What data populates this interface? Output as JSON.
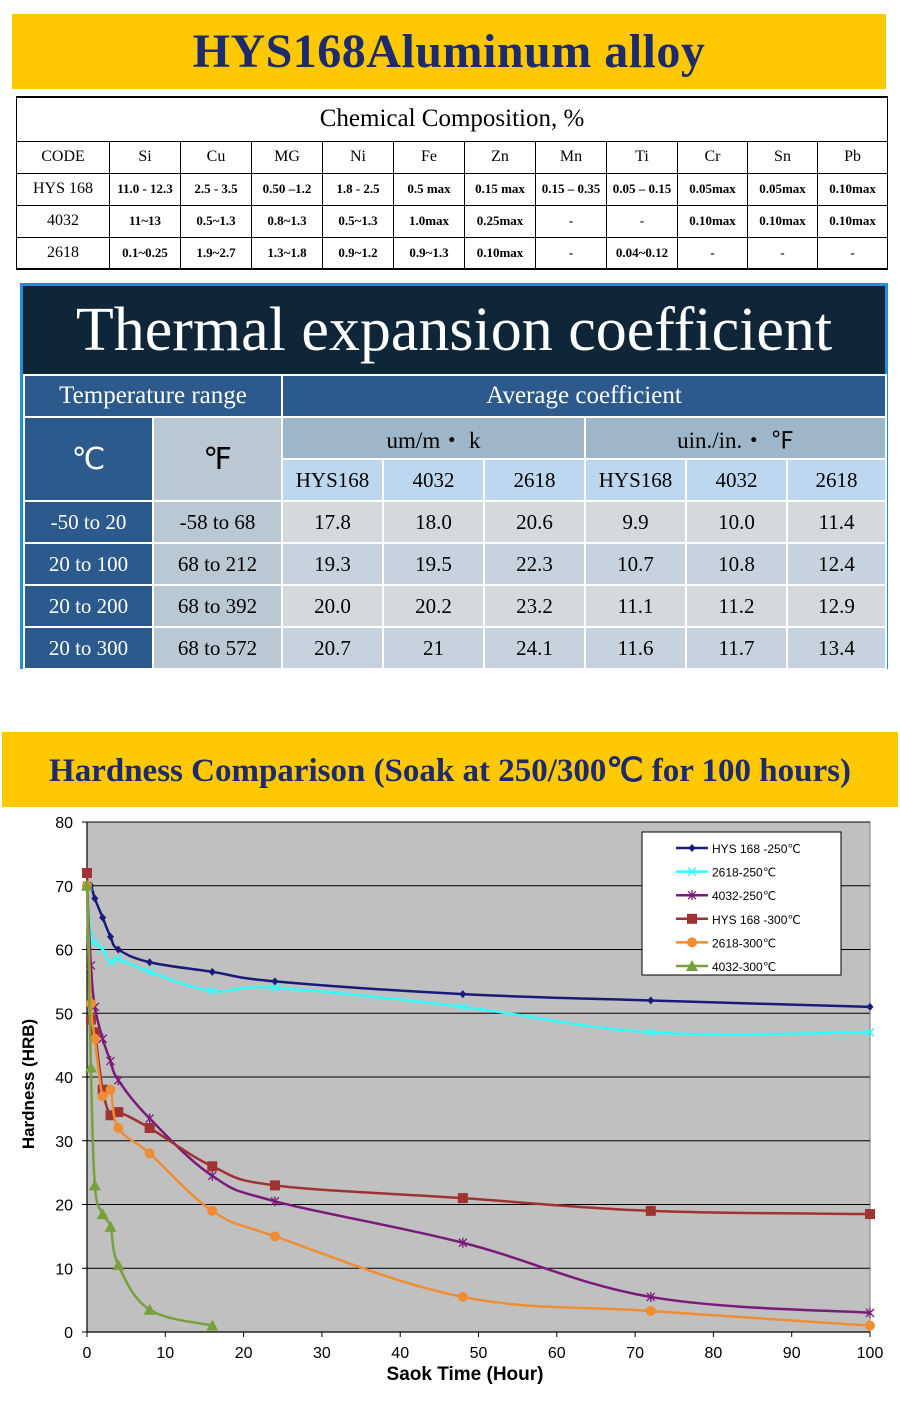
{
  "header": {
    "title": "HYS168Aluminum alloy"
  },
  "composition": {
    "caption": "Chemical Composition, %",
    "columns": [
      "CODE",
      "Si",
      "Cu",
      "MG",
      "Ni",
      "Fe",
      "Zn",
      "Mn",
      "Ti",
      "Cr",
      "Sn",
      "Pb"
    ],
    "rows": [
      [
        "HYS 168",
        "11.0 - 12.3",
        "2.5 - 3.5",
        "0.50 –1.2",
        "1.8 - 2.5",
        "0.5 max",
        "0.15 max",
        "0.15 – 0.35",
        "0.05 – 0.15",
        "0.05max",
        "0.05max",
        "0.10max"
      ],
      [
        "4032",
        "11~13",
        "0.5~1.3",
        "0.8~1.3",
        "0.5~1.3",
        "1.0max",
        "0.25max",
        "-",
        "-",
        "0.10max",
        "0.10max",
        "0.10max"
      ],
      [
        "2618",
        "0.1~0.25",
        "1.9~2.7",
        "1.3~1.8",
        "0.9~1.2",
        "0.9~1.3",
        "0.10max",
        "-",
        "0.04~0.12",
        "-",
        "-",
        "-"
      ]
    ]
  },
  "thermal": {
    "title": "Thermal expansion coefficient",
    "temp_range_label": "Temperature range",
    "avg_coef_label": "Average coefficient",
    "unit_c": "℃",
    "unit_f": "℉",
    "metric_unit": "um/m・ k",
    "imperial_unit": "uin./in.・ ℉",
    "alloys": [
      "HYS168",
      "4032",
      "2618",
      "HYS168",
      "4032",
      "2618"
    ],
    "rows": [
      {
        "c": "-50 to 20",
        "f": "-58 to 68",
        "v": [
          "17.8",
          "18.0",
          "20.6",
          "9.9",
          "10.0",
          "11.4"
        ]
      },
      {
        "c": "20 to 100",
        "f": "68 to 212",
        "v": [
          "19.3",
          "19.5",
          "22.3",
          "10.7",
          "10.8",
          "12.4"
        ]
      },
      {
        "c": "20 to 200",
        "f": "68 to 392",
        "v": [
          "20.0",
          "20.2",
          "23.2",
          "11.1",
          "11.2",
          "12.9"
        ]
      },
      {
        "c": "20 to 300",
        "f": "68 to 572",
        "v": [
          "20.7",
          "21",
          "24.1",
          "11.6",
          "11.7",
          "13.4"
        ]
      }
    ]
  },
  "hardness": {
    "title": "Hardness Comparison (Soak at 250/300℃ for 100 hours)"
  },
  "chart_data": {
    "type": "line",
    "xlabel": "Saok Time (Hour)",
    "ylabel": "Hardness (HRB)",
    "xlim": [
      0,
      100
    ],
    "ylim": [
      0,
      80
    ],
    "xticks": [
      0,
      10,
      20,
      30,
      40,
      50,
      60,
      70,
      80,
      90,
      100
    ],
    "yticks": [
      0,
      10,
      20,
      30,
      40,
      50,
      60,
      70,
      80
    ],
    "grid": "horizontal",
    "legend_position": "top-right",
    "plot_background": "#c0c0c0",
    "series": [
      {
        "name": "HYS 168 -250℃",
        "color": "#1a1a7a",
        "marker": "diamond",
        "x": [
          0,
          0.5,
          1,
          2,
          3,
          4,
          8,
          16,
          24,
          48,
          72,
          100
        ],
        "y": [
          70,
          70,
          68,
          65,
          62,
          60,
          58,
          56.5,
          55,
          53,
          52,
          51
        ]
      },
      {
        "name": "2618-250℃",
        "color": "#33ffff",
        "marker": "x",
        "x": [
          0,
          0.5,
          1,
          2,
          3,
          4,
          8,
          16,
          24,
          48,
          72,
          100
        ],
        "y": [
          70,
          62,
          61,
          60,
          58,
          58.5,
          56.5,
          53.5,
          54,
          51,
          47,
          47
        ]
      },
      {
        "name": "4032-250℃",
        "color": "#7a1a7a",
        "marker": "star",
        "x": [
          0,
          0.5,
          1,
          2,
          3,
          4,
          8,
          16,
          24,
          48,
          72,
          100
        ],
        "y": [
          70,
          57.5,
          51,
          46,
          42.5,
          39.5,
          33.5,
          24.5,
          20.5,
          14,
          5.5,
          3
        ]
      },
      {
        "name": "HYS 168 -300℃",
        "color": "#a03232",
        "marker": "square",
        "x": [
          0,
          0.5,
          1,
          2,
          3,
          4,
          8,
          16,
          24,
          48,
          72,
          100
        ],
        "y": [
          72,
          49,
          47,
          38,
          34,
          34.5,
          32,
          26,
          23,
          21,
          19,
          18.5
        ]
      },
      {
        "name": "2618-300℃",
        "color": "#f08c32",
        "marker": "circle",
        "x": [
          0,
          0.5,
          1,
          2,
          3,
          4,
          8,
          16,
          24,
          48,
          72,
          100
        ],
        "y": [
          70,
          51.5,
          46,
          37,
          38,
          32,
          28,
          19,
          15,
          5.5,
          3.3,
          1
        ]
      },
      {
        "name": "4032-300℃",
        "color": "#78a03c",
        "marker": "triangle",
        "x": [
          0,
          0.5,
          1,
          2,
          3,
          4,
          8,
          16
        ],
        "y": [
          70,
          41.5,
          23,
          18.5,
          16.5,
          10.5,
          3.5,
          1
        ]
      }
    ]
  }
}
